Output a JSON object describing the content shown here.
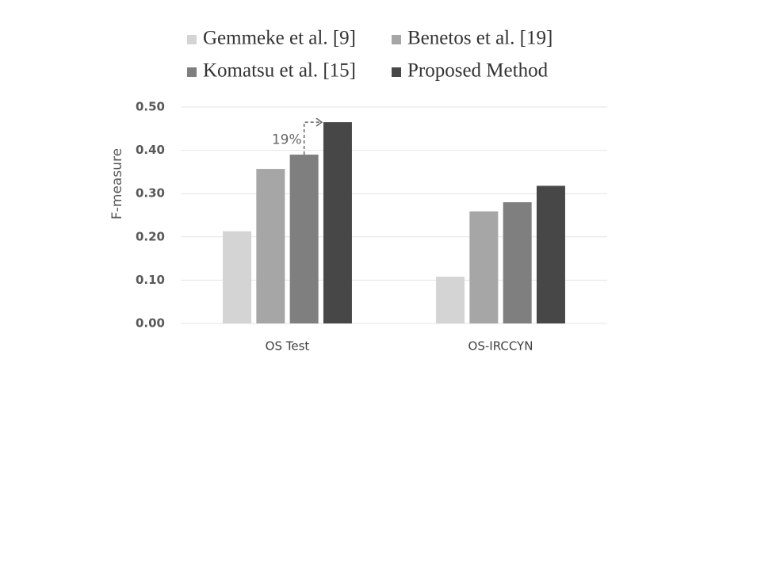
{
  "chart_data": {
    "type": "bar",
    "y_label": "F-measure",
    "annotation": "19%",
    "categories": [
      "OS Test",
      "OS-IRCCYN"
    ],
    "series": [
      {
        "name": "Gemmeke et al. [9]",
        "color": "#d4d4d4",
        "values": [
          0.213,
          0.108
        ]
      },
      {
        "name": "Benetos et al. [19]",
        "color": "#a6a6a6",
        "values": [
          0.357,
          0.259
        ]
      },
      {
        "name": "Komatsu et al. [15]",
        "color": "#7f7f7f",
        "values": [
          0.39,
          0.28
        ]
      },
      {
        "name": "Proposed Method",
        "color": "#474747",
        "values": [
          0.465,
          0.318
        ]
      }
    ],
    "ylim": [
      0,
      0.5
    ],
    "yticks": [
      {
        "value": 0,
        "label": "0.00"
      },
      {
        "value": 0.1,
        "label": "0.10"
      },
      {
        "value": 0.2,
        "label": "0.20"
      },
      {
        "value": 0.3,
        "label": "0.30"
      },
      {
        "value": 0.4,
        "label": "0.40"
      },
      {
        "value": 0.5,
        "label": "0.50"
      }
    ],
    "grid": true
  }
}
